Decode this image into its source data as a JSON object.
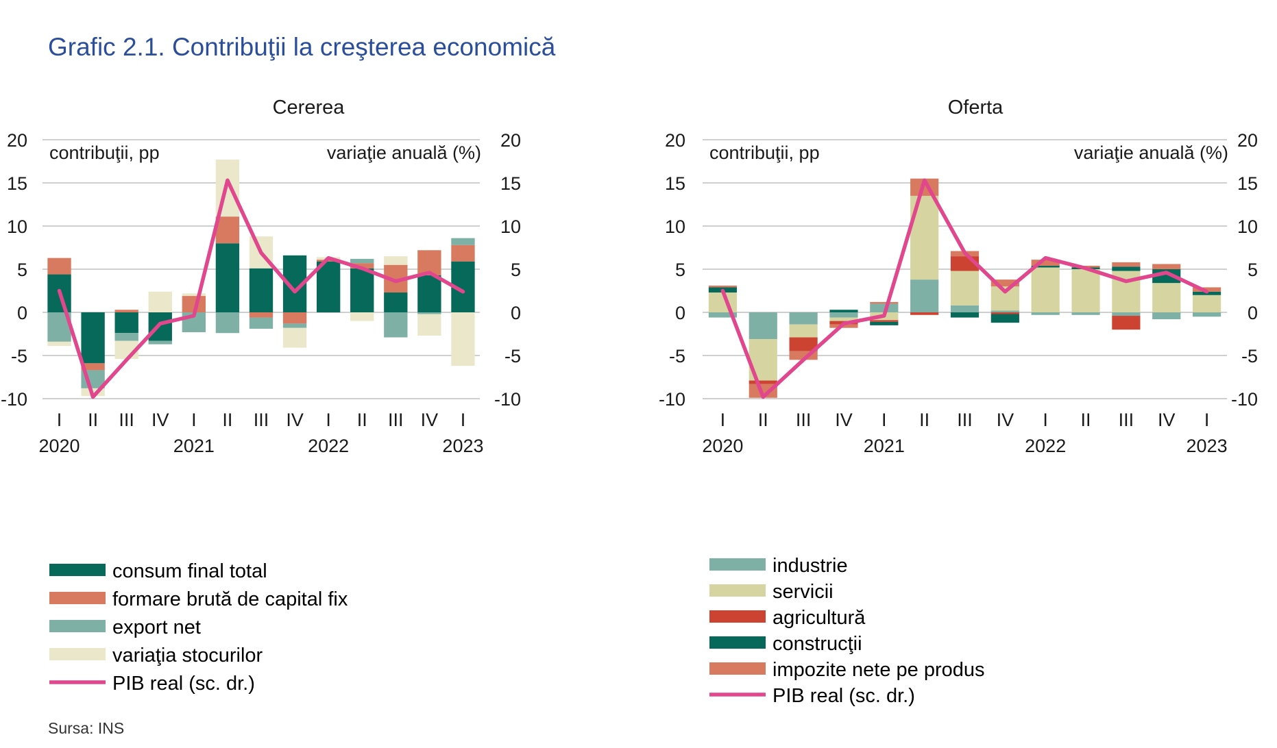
{
  "page_title": "Grafic 2.1. Contribuţii  la creşterea economică",
  "source": "Sursa: INS",
  "colors": {
    "title": "#2a4e9b",
    "grid": "#cfcfcf",
    "line": "#e0478c"
  },
  "chart_data": [
    {
      "type": "bar",
      "stacked": true,
      "title": "Cererea",
      "ylabel_left": "contribuţii, pp",
      "ylabel_right": "variaţie anuală (%)",
      "ylim": [
        -10,
        20
      ],
      "yticks": [
        20,
        15,
        10,
        5,
        0,
        -5,
        -10
      ],
      "categories": [
        "I",
        "II",
        "III",
        "IV",
        "I",
        "II",
        "III",
        "IV",
        "I",
        "II",
        "III",
        "IV",
        "I"
      ],
      "years": [
        {
          "label": "2020",
          "index": 0
        },
        {
          "label": "2021",
          "index": 4
        },
        {
          "label": "2022",
          "index": 8
        },
        {
          "label": "2023",
          "index": 12
        }
      ],
      "grid": true,
      "series": [
        {
          "name": "consum final total",
          "color": "#06695a",
          "values": [
            4.4,
            -5.9,
            -2.4,
            -3.3,
            0.0,
            8.0,
            5.1,
            6.6,
            5.9,
            5.1,
            2.3,
            4.3,
            5.9
          ]
        },
        {
          "name": "formare brută de capital fix",
          "color": "#d77a60",
          "values": [
            1.9,
            -0.8,
            0.3,
            0.0,
            1.9,
            3.1,
            -0.6,
            -1.3,
            0.2,
            0.6,
            3.2,
            2.9,
            1.9
          ]
        },
        {
          "name": "export net",
          "color": "#7fb0a5",
          "values": [
            -3.4,
            -2.1,
            -0.9,
            -0.4,
            -2.3,
            -2.4,
            -1.3,
            -0.5,
            0.0,
            0.5,
            -2.9,
            -0.2,
            0.8
          ]
        },
        {
          "name": "variaţia stocurilor",
          "color": "#ebe7cb",
          "values": [
            -0.5,
            -0.9,
            -2.1,
            2.4,
            0.3,
            6.6,
            3.7,
            -2.3,
            0.3,
            -1.0,
            1.0,
            -2.5,
            -6.2
          ]
        }
      ],
      "line": {
        "name": "PIB real (sc. dr.)",
        "color": "#e0478c",
        "values": [
          2.5,
          -9.8,
          -5.5,
          -1.3,
          -0.4,
          15.3,
          6.9,
          2.4,
          6.3,
          5.1,
          3.6,
          4.6,
          2.4
        ]
      }
    },
    {
      "type": "bar",
      "stacked": true,
      "title": "Oferta",
      "ylabel_left": "contribuţii, pp",
      "ylabel_right": "variaţie anuală (%)",
      "ylim": [
        -10,
        20
      ],
      "yticks": [
        20,
        15,
        10,
        5,
        0,
        -5,
        -10
      ],
      "categories": [
        "I",
        "II",
        "III",
        "IV",
        "I",
        "II",
        "III",
        "IV",
        "I",
        "II",
        "III",
        "IV",
        "I"
      ],
      "years": [
        {
          "label": "2020",
          "index": 0
        },
        {
          "label": "2021",
          "index": 4
        },
        {
          "label": "2022",
          "index": 8
        },
        {
          "label": "2023",
          "index": 12
        }
      ],
      "grid": true,
      "series": [
        {
          "name": "industrie",
          "color": "#7fb0a5",
          "values": [
            -0.6,
            -3.1,
            -1.4,
            -0.6,
            1.0,
            3.8,
            0.8,
            0.2,
            -0.3,
            -0.3,
            -0.4,
            -0.8,
            -0.5
          ]
        },
        {
          "name": "servicii",
          "color": "#d6d5a1",
          "values": [
            2.3,
            -4.8,
            -1.5,
            -0.4,
            -0.9,
            9.7,
            4.0,
            2.8,
            5.2,
            5.0,
            4.8,
            3.4,
            2.0
          ]
        },
        {
          "name": "agricultură",
          "color": "#cc4332",
          "values": [
            0.0,
            -0.4,
            -1.6,
            -0.4,
            -0.2,
            -0.3,
            1.7,
            -0.2,
            0.0,
            0.0,
            -1.6,
            0.0,
            0.0
          ]
        },
        {
          "name": "construcţii",
          "color": "#06695a",
          "values": [
            0.6,
            0.0,
            0.0,
            0.3,
            -0.4,
            0.0,
            -0.6,
            -1.0,
            0.2,
            0.2,
            0.5,
            1.6,
            0.4
          ]
        },
        {
          "name": "impozite nete pe produs",
          "color": "#d77a60",
          "values": [
            0.2,
            -1.6,
            -1.0,
            -0.4,
            0.2,
            2.0,
            0.6,
            0.8,
            0.7,
            0.2,
            0.5,
            0.6,
            0.5
          ]
        }
      ],
      "line": {
        "name": "PIB real (sc. dr.)",
        "color": "#e0478c",
        "values": [
          2.5,
          -9.8,
          -5.5,
          -1.3,
          -0.4,
          15.3,
          6.9,
          2.4,
          6.3,
          5.1,
          3.6,
          4.6,
          2.4
        ]
      }
    }
  ]
}
